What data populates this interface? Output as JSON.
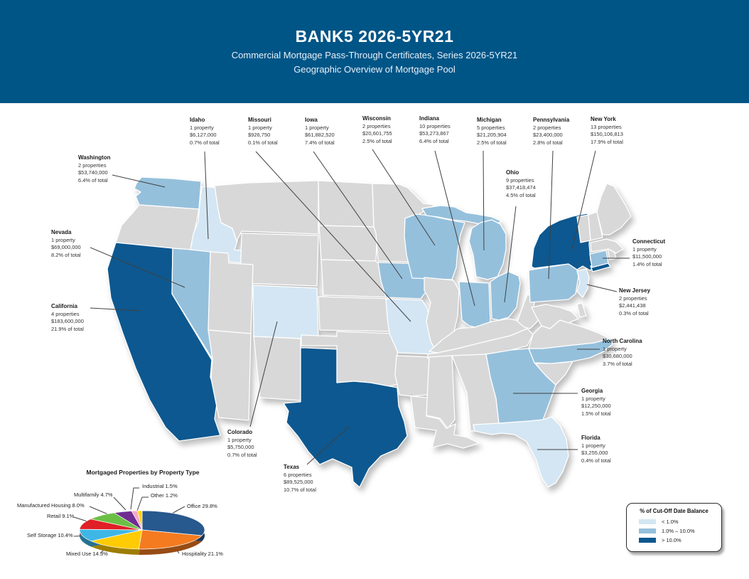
{
  "header": {
    "title": "BANK5 2026-5YR21",
    "subtitle1": "Commercial Mortgage Pass-Through Certificates, Series 2026-5YR21",
    "subtitle2": "Geographic Overview of Mortgage Pool",
    "bg_color": "#005587"
  },
  "map": {
    "categories": {
      "lt1": "#d4e6f3",
      "b1to10": "#95c0dc",
      "gt10": "#0d5890",
      "none": "#d8d8d9"
    },
    "state_fills": {
      "WA": "b1to10",
      "ID": "lt1",
      "NV": "b1to10",
      "CA": "gt10",
      "CO": "lt1",
      "TX": "gt10",
      "MO": "lt1",
      "IA": "b1to10",
      "WI": "b1to10",
      "MI": "b1to10",
      "IN": "b1to10",
      "OH": "b1to10",
      "PA": "b1to10",
      "NY": "gt10",
      "CT": "b1to10",
      "NJ": "lt1",
      "NC": "b1to10",
      "GA": "b1to10",
      "FL": "lt1"
    },
    "callouts": [
      {
        "state": "Washington",
        "properties": "2 properties",
        "balance": "$53,740,000",
        "share": "6.4% of total"
      },
      {
        "state": "Idaho",
        "properties": "1 property",
        "balance": "$6,127,000",
        "share": "0.7% of total"
      },
      {
        "state": "Missouri",
        "properties": "1 property",
        "balance": "$926,750",
        "share": "0.1% of total"
      },
      {
        "state": "Iowa",
        "properties": "1 property",
        "balance": "$61,882,520",
        "share": "7.4% of total"
      },
      {
        "state": "Wisconsin",
        "properties": "2 properties",
        "balance": "$20,601,755",
        "share": "2.5% of total"
      },
      {
        "state": "Indiana",
        "properties": "10 properties",
        "balance": "$53,273,867",
        "share": "6.4% of total"
      },
      {
        "state": "Michigan",
        "properties": "5 properties",
        "balance": "$21,205,904",
        "share": "2.5% of total"
      },
      {
        "state": "Pennsylvania",
        "properties": "2 properties",
        "balance": "$23,400,000",
        "share": "2.8% of total"
      },
      {
        "state": "New York",
        "properties": "13 properties",
        "balance": "$150,106,813",
        "share": "17.9% of total"
      },
      {
        "state": "Ohio",
        "properties": "9 properties",
        "balance": "$37,418,474",
        "share": "4.5% of total"
      },
      {
        "state": "Nevada",
        "properties": "1 property",
        "balance": "$69,000,000",
        "share": "8.2% of total"
      },
      {
        "state": "California",
        "properties": "4 properties",
        "balance": "$183,600,000",
        "share": "21.9% of total"
      },
      {
        "state": "Connecticut",
        "properties": "1 property",
        "balance": "$11,500,000",
        "share": "1.4% of total"
      },
      {
        "state": "New Jersey",
        "properties": "2 properties",
        "balance": "$2,441,438",
        "share": "0.3% of total"
      },
      {
        "state": "North Carolina",
        "properties": "1 property",
        "balance": "$30,680,000",
        "share": "3.7% of total"
      },
      {
        "state": "Georgia",
        "properties": "1 property",
        "balance": "$12,250,000",
        "share": "1.5% of total"
      },
      {
        "state": "Florida",
        "properties": "1 property",
        "balance": "$3,255,000",
        "share": "0.4% of total"
      },
      {
        "state": "Colorado",
        "properties": "1 property",
        "balance": "$5,750,000",
        "share": "0.7% of total"
      },
      {
        "state": "Texas",
        "properties": "6 properties",
        "balance": "$89,525,000",
        "share": "10.7% of total"
      }
    ]
  },
  "chart_data": {
    "type": "pie",
    "title": "Mortgaged Properties by Property Type",
    "labels": [
      "Office",
      "Hospitality",
      "Mixed Use",
      "Self Storage",
      "Retail",
      "Manufactured Housing",
      "Multifamily",
      "Industrial",
      "Other"
    ],
    "values": [
      29.8,
      21.1,
      14.3,
      10.4,
      9.1,
      8.0,
      4.7,
      1.5,
      1.2
    ],
    "colors": [
      "#27588e",
      "#f47b20",
      "#ffcb05",
      "#3eb6e6",
      "#e01f26",
      "#6cbf45",
      "#6f2d91",
      "#f6a8c9",
      "#ffd400"
    ],
    "legend_position": "callout-labels"
  },
  "legend": {
    "title": "% of Cut-Off Date Balance",
    "items": [
      {
        "label": "< 1.0%",
        "color": "#d4e6f3"
      },
      {
        "label": "1.0% – 10.0%",
        "color": "#95c0dc"
      },
      {
        "label": "> 10.0%",
        "color": "#0d5890"
      }
    ]
  }
}
